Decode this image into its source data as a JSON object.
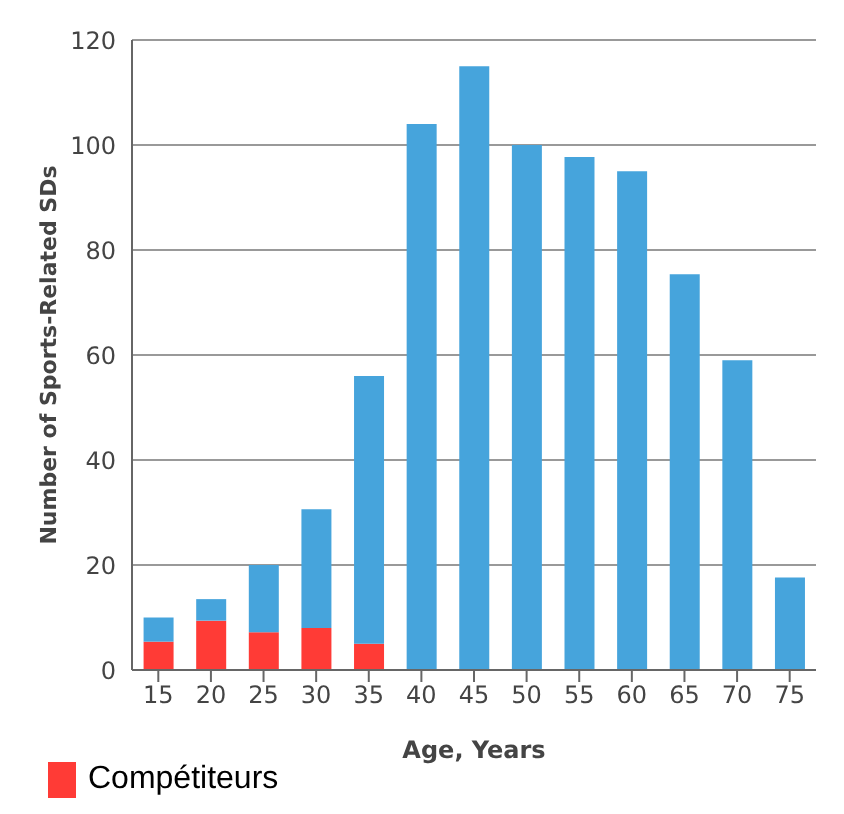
{
  "chart_data": {
    "type": "bar",
    "stacked": true,
    "xlabel": "Age, Years",
    "ylabel": "Number of Sports-Related SDs",
    "categories": [
      "15",
      "20",
      "25",
      "30",
      "35",
      "40",
      "45",
      "50",
      "55",
      "60",
      "65",
      "70",
      "75"
    ],
    "series": [
      {
        "name": "Compétiteurs",
        "color": "#ff3b36",
        "values": [
          5.4,
          9.4,
          7.2,
          8,
          5,
          null,
          null,
          null,
          null,
          null,
          null,
          null,
          null
        ]
      },
      {
        "color": "#46a4dc",
        "values": [
          4.6,
          4.1,
          12.8,
          22.6,
          51,
          104,
          115,
          100,
          97.7,
          95,
          75.4,
          59,
          17.6
        ]
      }
    ],
    "ylim": [
      0,
      120
    ],
    "yticks": [
      0,
      20,
      40,
      60,
      80,
      100,
      120
    ],
    "grid": "y",
    "legend": "bottom left"
  }
}
